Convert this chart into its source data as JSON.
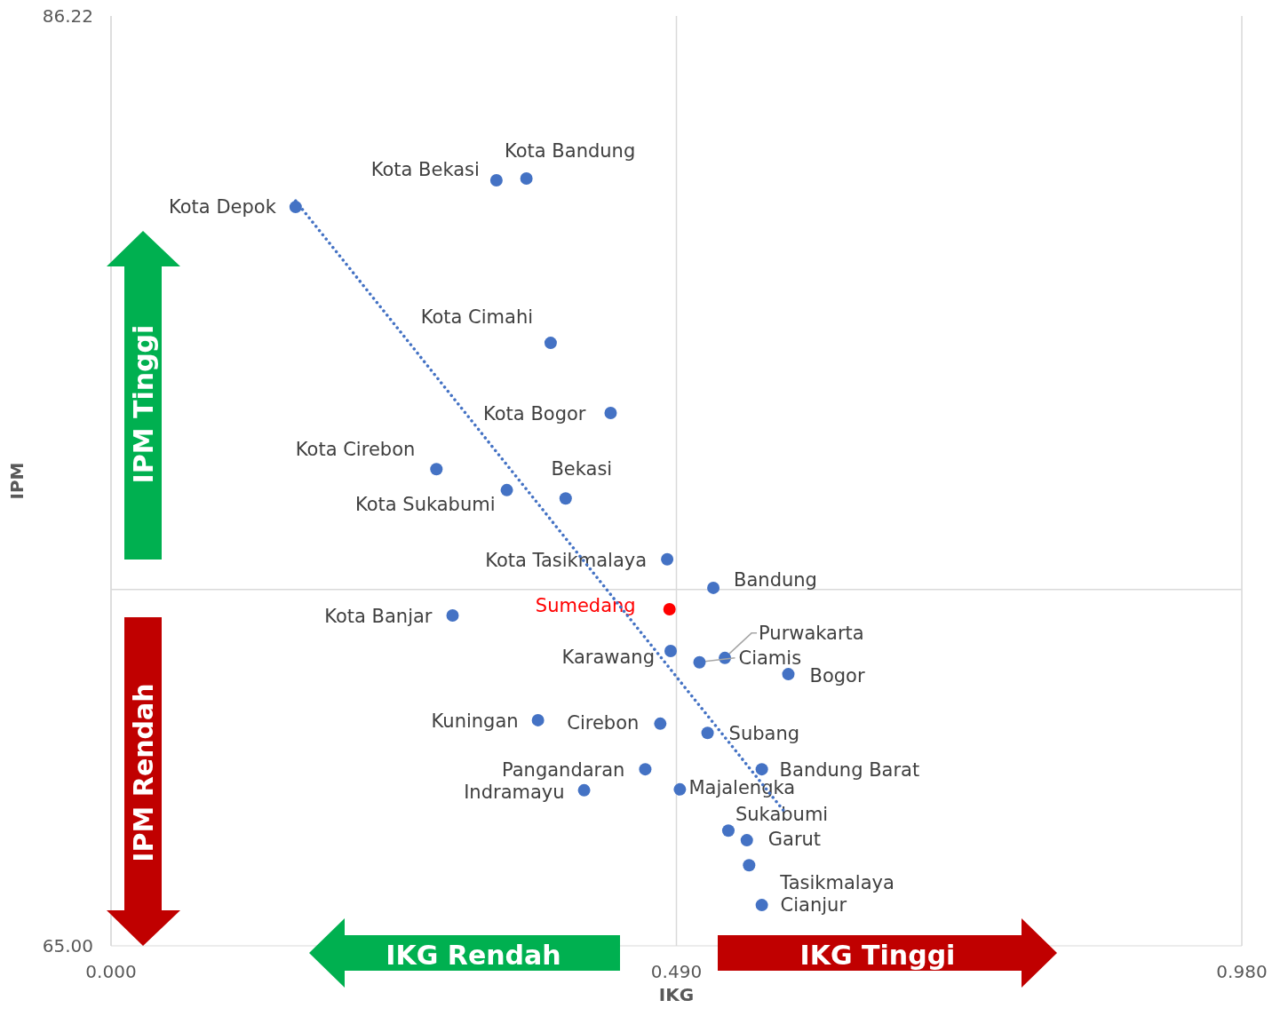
{
  "chart_data": {
    "type": "scatter",
    "xlabel": "IKG",
    "ylabel": "IPM",
    "xlim": [
      0,
      0.98
    ],
    "xticks": [
      {
        "value": 0,
        "label": "0.000"
      },
      {
        "value": 0.49,
        "label": "0.490"
      },
      {
        "value": 0.98,
        "label": "0.980"
      }
    ],
    "ylim": [
      65,
      86.22
    ],
    "yticks": [
      {
        "value": 65,
        "label": "65.00"
      },
      {
        "value": 86.22,
        "label": "86.22"
      }
    ],
    "grid": "x",
    "marker": "circle",
    "ref_lines": [
      {
        "axis": "y",
        "value": 73.13,
        "color": "#d9d9d9"
      }
    ],
    "annotations": [
      "IPM Tinggi",
      "IPM Rendah",
      "IKG Rendah",
      "IKG Tinggi"
    ],
    "series": [
      {
        "color": "#4472c4",
        "x": [
          0.16,
          0.334,
          0.36,
          0.381,
          0.433,
          0.282,
          0.343,
          0.394,
          0.482,
          0.522,
          0.484,
          0.296,
          0.485,
          0.532,
          0.51,
          0.587,
          0.37,
          0.476,
          0.517,
          0.463,
          0.564,
          0.41,
          0.493,
          0.535,
          0.551,
          0.553,
          0.564
        ],
        "values": [
          81.86,
          82.47,
          82.51,
          78.76,
          77.16,
          75.88,
          75.4,
          75.21,
          73.82,
          73.17,
          72.68,
          72.54,
          71.73,
          71.57,
          71.47,
          71.2,
          70.15,
          70.07,
          69.86,
          69.03,
          69.03,
          68.55,
          68.57,
          67.63,
          67.41,
          66.84,
          65.93
        ],
        "colors": [
          "#4472c4",
          "#4472c4",
          "#4472c4",
          "#4472c4",
          "#4472c4",
          "#4472c4",
          "#4472c4",
          "#4472c4",
          "#4472c4",
          "#4472c4",
          "#ff0000",
          "#4472c4",
          "#4472c4",
          "#4472c4",
          "#4472c4",
          "#4472c4",
          "#4472c4",
          "#4472c4",
          "#4472c4",
          "#4472c4",
          "#4472c4",
          "#4472c4",
          "#4472c4",
          "#4472c4",
          "#4472c4",
          "#4472c4",
          "#4472c4"
        ],
        "value_labels": [
          "Kota Depok",
          "Kota Bekasi",
          "Kota Bandung",
          "Kota Cimahi",
          "Kota Bogor",
          "Kota Cirebon",
          "Kota Sukabumi",
          "Bekasi",
          "Kota Tasikmalaya",
          "Bandung",
          "Sumedang",
          "Kota Banjar",
          "Karawang",
          "Purwakarta",
          "Ciamis",
          "Bogor",
          "Kuningan",
          "Cirebon",
          "Subang",
          "Pangandaran",
          "Bandung Barat",
          "Indramayu",
          "Majalengka",
          "Sukabumi",
          "Garut",
          "Tasikmalaya",
          "Cianjur"
        ]
      },
      {
        "type": "line",
        "color": "#4472c4",
        "line_style": "dotted",
        "marker": "none",
        "x": [
          0.16,
          0.583
        ],
        "values": [
          82.0,
          68.08
        ]
      }
    ]
  }
}
